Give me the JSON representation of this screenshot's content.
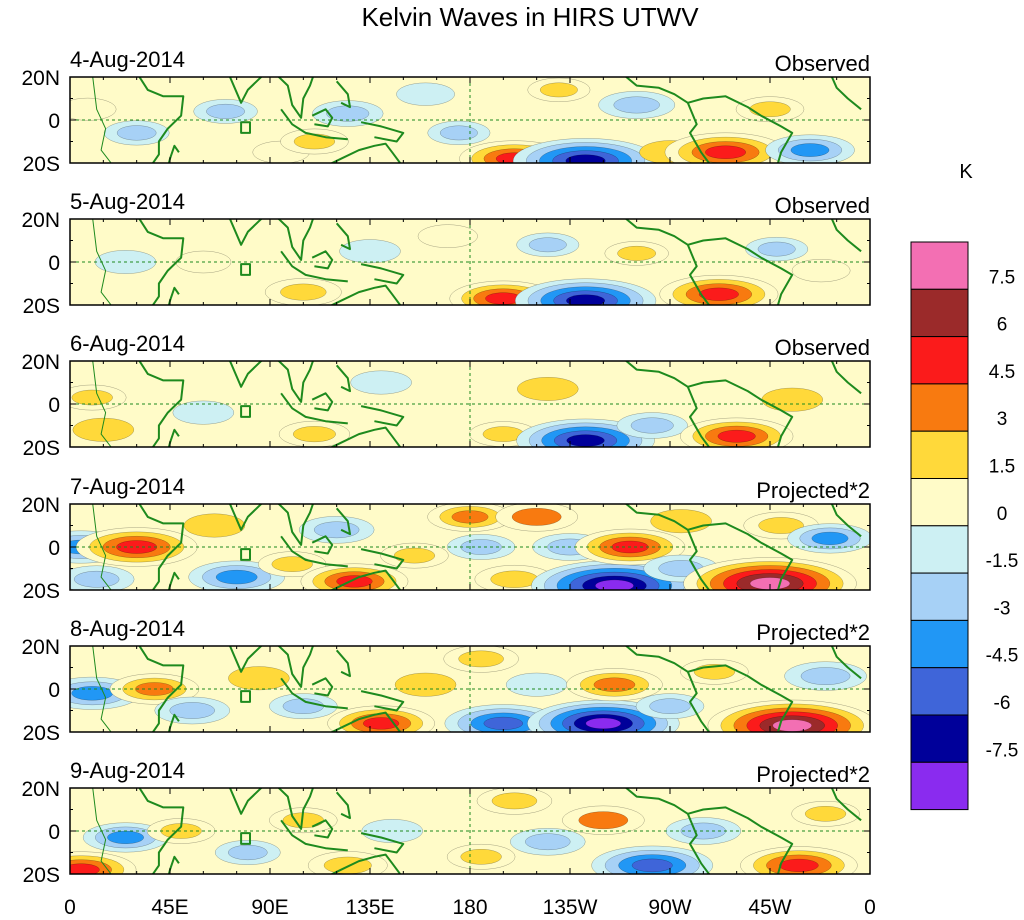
{
  "chart_data": {
    "type": "heatmap",
    "title": "Kelvin Waves in HIRS UTWV",
    "colorbar": {
      "unit": "K",
      "tick_labels": [
        "7.5",
        "6",
        "4.5",
        "3",
        "1.5",
        "0",
        "-1.5",
        "-3",
        "-4.5",
        "-6",
        "-7.5"
      ],
      "bins": [
        {
          "range": [
            7.5,
            9
          ],
          "color": "#f36fb3"
        },
        {
          "range": [
            6,
            7.5
          ],
          "color": "#9b2a2a"
        },
        {
          "range": [
            4.5,
            6
          ],
          "color": "#fb1b1b"
        },
        {
          "range": [
            3,
            4.5
          ],
          "color": "#f87a10"
        },
        {
          "range": [
            1.5,
            3
          ],
          "color": "#ffd93a"
        },
        {
          "range": [
            0,
            1.5
          ],
          "color": "#fffbc8"
        },
        {
          "range": [
            -1.5,
            0
          ],
          "color": "#cdf0f3"
        },
        {
          "range": [
            -3,
            -1.5
          ],
          "color": "#a7d1f6"
        },
        {
          "range": [
            -4.5,
            -3
          ],
          "color": "#2197f5"
        },
        {
          "range": [
            -6,
            -4.5
          ],
          "color": "#3f65d9"
        },
        {
          "range": [
            -7.5,
            -6
          ],
          "color": "#00009a"
        },
        {
          "range": [
            -9,
            -7.5
          ],
          "color": "#8a2bef"
        }
      ]
    },
    "x_ticks": [
      "0",
      "45E",
      "90E",
      "135E",
      "180",
      "135W",
      "90W",
      "45W",
      "0"
    ],
    "y_ticks": [
      "20N",
      "0",
      "20S"
    ],
    "xlim": [
      0,
      360
    ],
    "ylim": [
      -20,
      20
    ],
    "panels": [
      {
        "date": "4-Aug-2014",
        "label": "Observed",
        "blobs": [
          {
            "lon": 8,
            "lat": 5,
            "v": 1.2
          },
          {
            "lon": 30,
            "lat": -6,
            "v": -1.8
          },
          {
            "lon": 70,
            "lat": 4,
            "v": -1.7
          },
          {
            "lon": 95,
            "lat": -15,
            "v": 1.2
          },
          {
            "lon": 110,
            "lat": -10,
            "v": 2.0
          },
          {
            "lon": 125,
            "lat": 3,
            "v": -2.2
          },
          {
            "lon": 160,
            "lat": 12,
            "v": -1.3
          },
          {
            "lon": 175,
            "lat": -6,
            "v": -1.6
          },
          {
            "lon": 200,
            "lat": -18,
            "v": 5.0
          },
          {
            "lon": 220,
            "lat": 14,
            "v": 1.6
          },
          {
            "lon": 232,
            "lat": -19,
            "v": -7.5
          },
          {
            "lon": 255,
            "lat": 7,
            "v": -2.6
          },
          {
            "lon": 270,
            "lat": -15,
            "v": 1.5
          },
          {
            "lon": 295,
            "lat": -15,
            "v": 5.8
          },
          {
            "lon": 315,
            "lat": 5,
            "v": 2.0
          },
          {
            "lon": 333,
            "lat": -14,
            "v": -3.5
          }
        ]
      },
      {
        "date": "5-Aug-2014",
        "label": "Observed",
        "blobs": [
          {
            "lon": 25,
            "lat": 0,
            "v": -1.5
          },
          {
            "lon": 60,
            "lat": 0,
            "v": 1.1
          },
          {
            "lon": 105,
            "lat": -14,
            "v": 2.6
          },
          {
            "lon": 135,
            "lat": 5,
            "v": -1.5
          },
          {
            "lon": 170,
            "lat": 12,
            "v": 1.4
          },
          {
            "lon": 195,
            "lat": -17,
            "v": 4.8
          },
          {
            "lon": 215,
            "lat": 8,
            "v": -1.6
          },
          {
            "lon": 232,
            "lat": -18,
            "v": -7.2
          },
          {
            "lon": 255,
            "lat": 4,
            "v": 1.7
          },
          {
            "lon": 292,
            "lat": -15,
            "v": 5.6
          },
          {
            "lon": 318,
            "lat": 6,
            "v": -1.6
          },
          {
            "lon": 338,
            "lat": -4,
            "v": 1.3
          }
        ]
      },
      {
        "date": "6-Aug-2014",
        "label": "Observed",
        "blobs": [
          {
            "lon": 10,
            "lat": 3,
            "v": 2.0
          },
          {
            "lon": 15,
            "lat": -12,
            "v": 1.5
          },
          {
            "lon": 60,
            "lat": -4,
            "v": -1.5
          },
          {
            "lon": 110,
            "lat": -14,
            "v": 2.2
          },
          {
            "lon": 140,
            "lat": 10,
            "v": -1.5
          },
          {
            "lon": 195,
            "lat": -14,
            "v": 2.0
          },
          {
            "lon": 215,
            "lat": 7,
            "v": 1.5
          },
          {
            "lon": 232,
            "lat": -17,
            "v": -7.0
          },
          {
            "lon": 262,
            "lat": -10,
            "v": -2.2
          },
          {
            "lon": 300,
            "lat": -15,
            "v": 5.2
          },
          {
            "lon": 325,
            "lat": 2,
            "v": 1.5
          }
        ]
      },
      {
        "date": "7-Aug-2014",
        "label": "Projected*2",
        "blobs": [
          {
            "lon": 5,
            "lat": 0,
            "v": -4.0
          },
          {
            "lon": 30,
            "lat": 0,
            "v": 5.8
          },
          {
            "lon": 12,
            "lat": -15,
            "v": -2.5
          },
          {
            "lon": 65,
            "lat": 10,
            "v": 1.5
          },
          {
            "lon": 75,
            "lat": -14,
            "v": -4.0
          },
          {
            "lon": 100,
            "lat": -8,
            "v": 2.0
          },
          {
            "lon": 120,
            "lat": 8,
            "v": -2.5
          },
          {
            "lon": 128,
            "lat": -16,
            "v": 4.8
          },
          {
            "lon": 155,
            "lat": -4,
            "v": 2.0
          },
          {
            "lon": 180,
            "lat": 14,
            "v": 3.2
          },
          {
            "lon": 185,
            "lat": 0,
            "v": -2.0
          },
          {
            "lon": 200,
            "lat": -15,
            "v": 2.8
          },
          {
            "lon": 210,
            "lat": 14,
            "v": 3.0
          },
          {
            "lon": 225,
            "lat": 0,
            "v": -2.5
          },
          {
            "lon": 245,
            "lat": -18,
            "v": -9.0
          },
          {
            "lon": 252,
            "lat": 0,
            "v": 5.0
          },
          {
            "lon": 275,
            "lat": 12,
            "v": 1.5
          },
          {
            "lon": 275,
            "lat": -10,
            "v": -2.5
          },
          {
            "lon": 315,
            "lat": -17,
            "v": 9.5
          },
          {
            "lon": 320,
            "lat": 10,
            "v": 2.5
          },
          {
            "lon": 342,
            "lat": 4,
            "v": -3.2
          }
        ]
      },
      {
        "date": "8-Aug-2014",
        "label": "Projected*2",
        "blobs": [
          {
            "lon": 10,
            "lat": -2,
            "v": -4.0
          },
          {
            "lon": 38,
            "lat": 0,
            "v": 3.5
          },
          {
            "lon": 55,
            "lat": -10,
            "v": -2.5
          },
          {
            "lon": 85,
            "lat": 5,
            "v": 1.5
          },
          {
            "lon": 105,
            "lat": -8,
            "v": -2.0
          },
          {
            "lon": 140,
            "lat": -16,
            "v": 4.8
          },
          {
            "lon": 160,
            "lat": 2,
            "v": 1.5
          },
          {
            "lon": 185,
            "lat": 14,
            "v": 2.5
          },
          {
            "lon": 195,
            "lat": -16,
            "v": -5.5
          },
          {
            "lon": 210,
            "lat": 2,
            "v": -1.5
          },
          {
            "lon": 240,
            "lat": -16,
            "v": -8.0
          },
          {
            "lon": 245,
            "lat": 2,
            "v": 4.0
          },
          {
            "lon": 270,
            "lat": -8,
            "v": -2.0
          },
          {
            "lon": 290,
            "lat": 8,
            "v": 2.0
          },
          {
            "lon": 325,
            "lat": -17,
            "v": 9.2
          },
          {
            "lon": 340,
            "lat": 6,
            "v": -3.0
          }
        ]
      },
      {
        "date": "9-Aug-2014",
        "label": "Projected*2",
        "blobs": [
          {
            "lon": 5,
            "lat": -18,
            "v": 5.0
          },
          {
            "lon": 25,
            "lat": -3,
            "v": -3.2
          },
          {
            "lon": 50,
            "lat": 0,
            "v": 2.0
          },
          {
            "lon": 80,
            "lat": -10,
            "v": -1.8
          },
          {
            "lon": 105,
            "lat": 5,
            "v": 2.0
          },
          {
            "lon": 125,
            "lat": -16,
            "v": 2.8
          },
          {
            "lon": 145,
            "lat": 0,
            "v": -1.5
          },
          {
            "lon": 185,
            "lat": -12,
            "v": 2.0
          },
          {
            "lon": 200,
            "lat": 14,
            "v": 2.5
          },
          {
            "lon": 215,
            "lat": -5,
            "v": -2.5
          },
          {
            "lon": 240,
            "lat": 5,
            "v": 3.0
          },
          {
            "lon": 262,
            "lat": -16,
            "v": -5.8
          },
          {
            "lon": 285,
            "lat": 0,
            "v": -2.5
          },
          {
            "lon": 328,
            "lat": -16,
            "v": 5.5
          },
          {
            "lon": 340,
            "lat": 8,
            "v": 2.0
          }
        ]
      }
    ]
  }
}
